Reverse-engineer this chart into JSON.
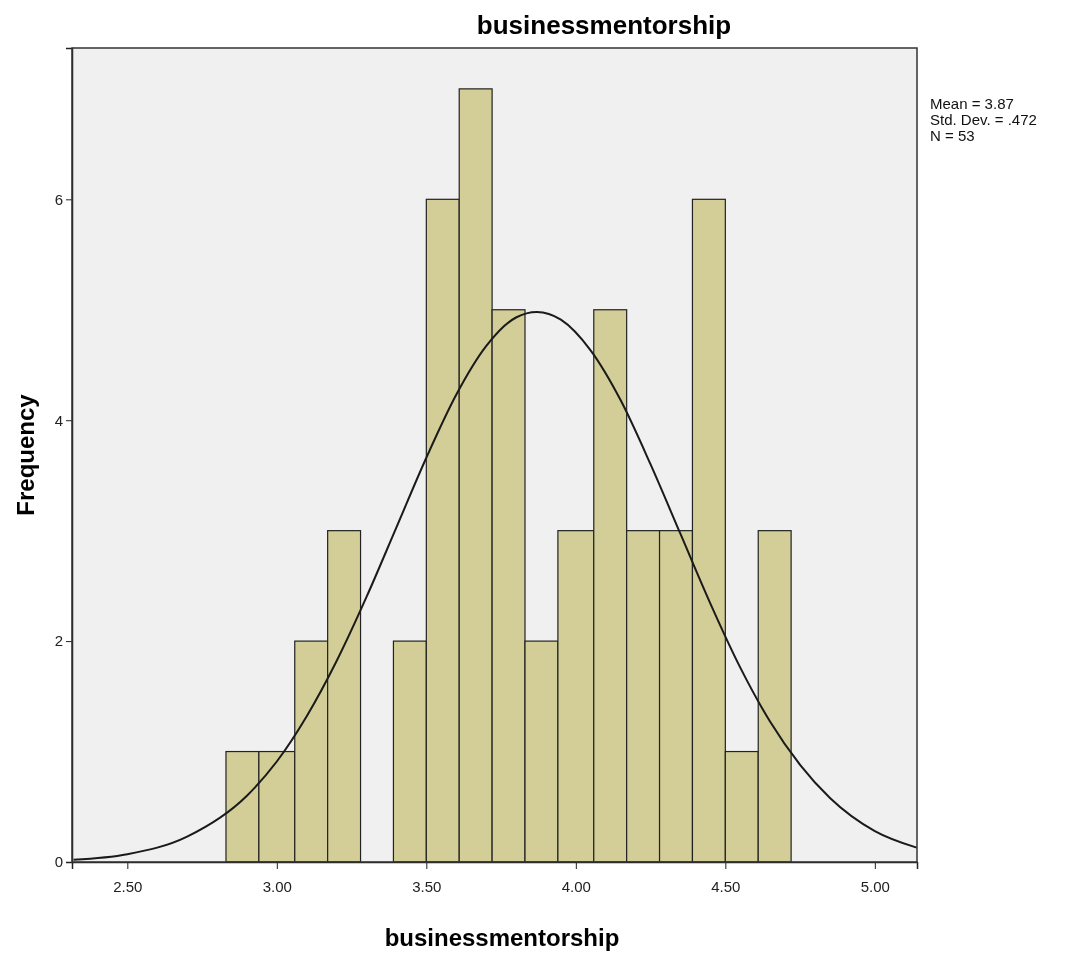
{
  "chart_data": {
    "type": "histogram",
    "title": "businessmentorship",
    "xlabel": "businessmentorship",
    "ylabel": "Frequency",
    "bins": [
      2.83,
      2.94,
      3.06,
      3.17,
      3.28,
      3.39,
      3.5,
      3.61,
      3.72,
      3.83,
      3.94,
      4.06,
      4.17,
      4.28,
      4.39,
      4.5,
      4.61,
      4.72
    ],
    "values": [
      1,
      1,
      2,
      3,
      0,
      2,
      6,
      7,
      5,
      2,
      3,
      5,
      3,
      3,
      6,
      1,
      3
    ],
    "color": "#d3ce97",
    "series": [
      {
        "type": "line",
        "color": "#1a1a1a",
        "x": [
          2.32,
          2.5,
          2.7,
          2.9,
          3.0,
          3.1,
          3.2,
          3.3,
          3.4,
          3.5,
          3.6,
          3.7,
          3.8,
          3.87,
          3.95,
          4.05,
          4.15,
          4.25,
          4.35,
          4.45,
          4.55,
          4.65,
          4.75,
          4.85,
          5.0,
          5.14
        ],
        "values": [
          0.02,
          0.07,
          0.23,
          0.6,
          0.91,
          1.32,
          1.82,
          2.4,
          3.03,
          3.66,
          4.23,
          4.67,
          4.93,
          4.98,
          4.91,
          4.63,
          4.18,
          3.6,
          2.97,
          2.34,
          1.76,
          1.27,
          0.88,
          0.58,
          0.28,
          0.13
        ]
      }
    ],
    "xlim": [
      2.315,
      5.141
    ],
    "xticks": [
      {
        "value": 2.5,
        "label": "2.50"
      },
      {
        "value": 3,
        "label": "3.00"
      },
      {
        "value": 3.5,
        "label": "3.50"
      },
      {
        "value": 4,
        "label": "4.00"
      },
      {
        "value": 4.5,
        "label": "4.50"
      },
      {
        "value": 5,
        "label": "5.00"
      }
    ],
    "ylim": [
      0,
      7.37
    ],
    "yticks": [
      0,
      2,
      4,
      6
    ],
    "grid": false,
    "annotations": [
      "Mean = 3.87",
      "Std. Dev. = .472",
      "N = 53"
    ]
  }
}
